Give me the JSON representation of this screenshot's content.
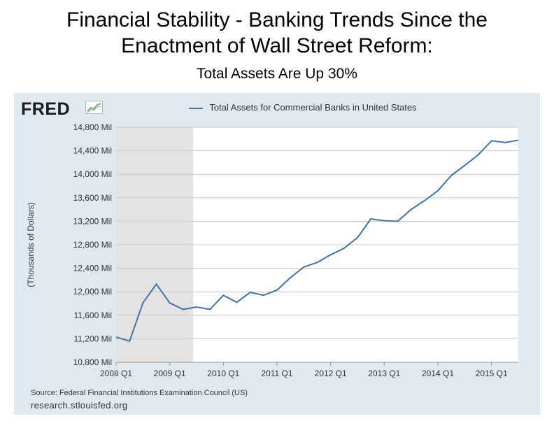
{
  "page": {
    "title_line1": "Financial Stability - Banking Trends Since the",
    "title_line2": "Enactment of Wall Street Reform:",
    "subtitle": "Total Assets Are Up 30%"
  },
  "fred": {
    "logo_text": "FRED",
    "source": "Source: Federal Financial Institutions Examination Council (US)",
    "site": "research.stlouisfed.org"
  },
  "colors": {
    "line": "#4572a7",
    "panel": "#e1e9f0",
    "recession": "#e3e3e3",
    "grid": "#c8c8c8"
  },
  "chart_data": {
    "type": "line",
    "title": "",
    "legend": "Total Assets for Commercial Banks in United States",
    "ylabel": "(Thousands of Dollars)",
    "xlabel": "",
    "ylim": [
      10800,
      14800
    ],
    "yticks": [
      10800,
      11200,
      11600,
      12000,
      12400,
      12800,
      13200,
      13600,
      14000,
      14400,
      14800
    ],
    "ytick_labels": [
      "10,800 Mil",
      "11,200 Mil",
      "11,600 Mil",
      "12,000 Mil",
      "12,400 Mil",
      "12,800 Mil",
      "13,200 Mil",
      "13,600 Mil",
      "14,000 Mil",
      "14,400 Mil",
      "14,800 Mil"
    ],
    "xlim": [
      0,
      30
    ],
    "xticks": [
      0,
      4,
      8,
      12,
      16,
      20,
      24,
      28
    ],
    "xtick_labels": [
      "2008 Q1",
      "2009 Q1",
      "2010 Q1",
      "2011 Q1",
      "2012 Q1",
      "2013 Q1",
      "2014 Q1",
      "2015 Q1"
    ],
    "recession_shading": [
      0,
      5.75
    ],
    "series": [
      {
        "name": "Total Assets for Commercial Banks in United States",
        "x": [
          0,
          1,
          2,
          3,
          4,
          5,
          6,
          7,
          8,
          9,
          10,
          11,
          12,
          13,
          14,
          15,
          16,
          17,
          18,
          19,
          20,
          21,
          22,
          23,
          24,
          25,
          26,
          27,
          28,
          29,
          30
        ],
        "values": [
          11230,
          11160,
          11810,
          12130,
          11810,
          11700,
          11740,
          11700,
          11940,
          11820,
          11990,
          11940,
          12030,
          12240,
          12420,
          12500,
          12630,
          12740,
          12920,
          13240,
          13210,
          13200,
          13400,
          13550,
          13720,
          13980,
          14150,
          14330,
          14570,
          14540,
          14580
        ]
      }
    ]
  }
}
